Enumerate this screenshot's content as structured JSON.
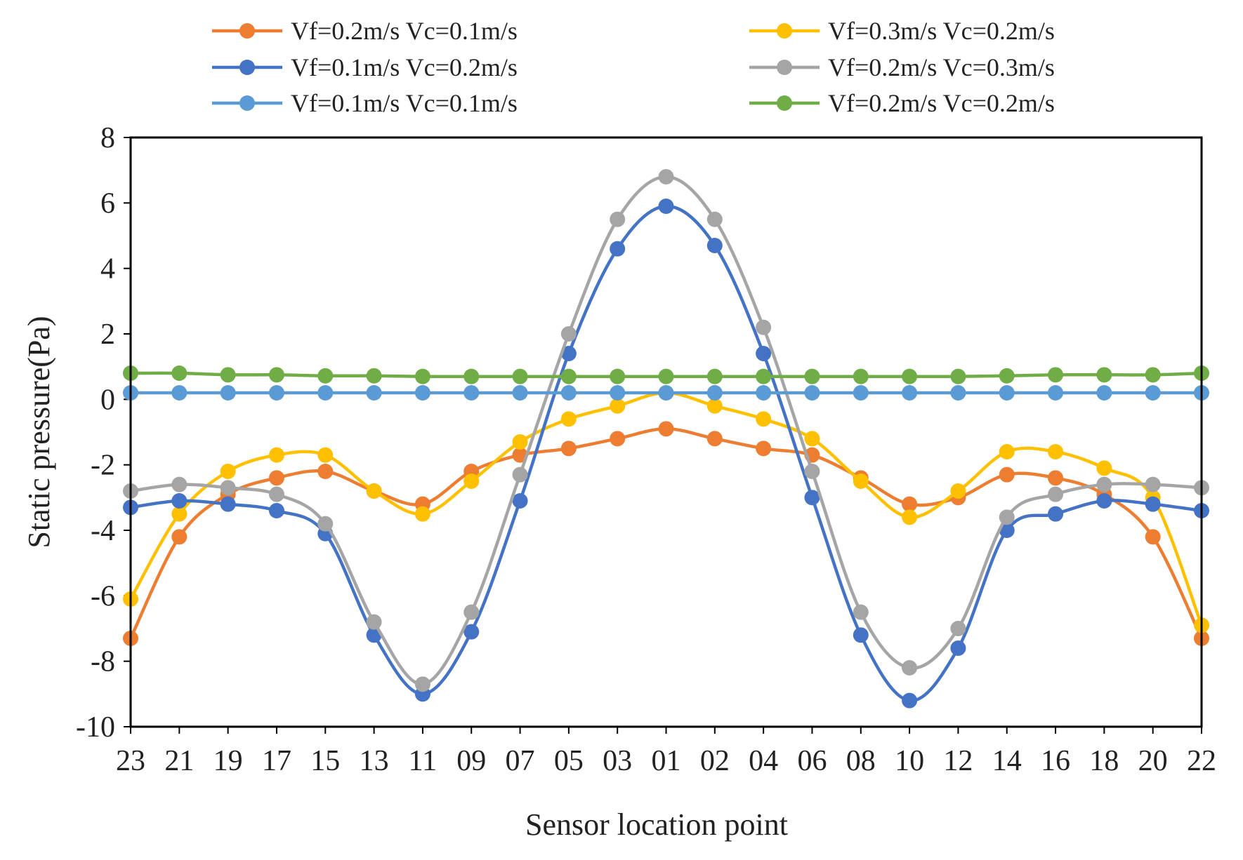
{
  "chart_data": {
    "type": "line",
    "title": "",
    "xlabel": "Sensor location point",
    "ylabel": "Static pressure(Pa)",
    "ylim": [
      -10,
      8
    ],
    "y_ticks": [
      "8",
      "6",
      "4",
      "2",
      "0",
      "-2",
      "-4",
      "-6",
      "-8",
      "-10"
    ],
    "grid": false,
    "legend_position": "top",
    "categories": [
      "23",
      "21",
      "19",
      "17",
      "15",
      "13",
      "11",
      "09",
      "07",
      "05",
      "03",
      "01",
      "02",
      "04",
      "06",
      "08",
      "10",
      "12",
      "14",
      "16",
      "18",
      "20",
      "22"
    ],
    "series": [
      {
        "name": "Vf=0.2m/s Vc=0.1m/s",
        "color": "#ED7D31",
        "values": [
          -7.3,
          -4.2,
          -2.9,
          -2.4,
          -2.2,
          -2.8,
          -3.2,
          -2.2,
          -1.7,
          -1.5,
          -1.2,
          -0.9,
          -1.2,
          -1.5,
          -1.7,
          -2.4,
          -3.2,
          -3.0,
          -2.3,
          -2.4,
          -2.9,
          -4.2,
          -7.3
        ]
      },
      {
        "name": "Vf=0.3m/s Vc=0.2m/s",
        "color": "#FFC000",
        "values": [
          -6.1,
          -3.5,
          -2.2,
          -1.7,
          -1.7,
          -2.8,
          -3.5,
          -2.5,
          -1.3,
          -0.6,
          -0.2,
          0.2,
          -0.2,
          -0.6,
          -1.2,
          -2.5,
          -3.6,
          -2.8,
          -1.6,
          -1.6,
          -2.1,
          -3.0,
          -6.9
        ]
      },
      {
        "name": "Vf=0.1m/s Vc=0.2m/s",
        "color": "#4472C4",
        "values": [
          -3.3,
          -3.1,
          -3.2,
          -3.4,
          -4.1,
          -7.2,
          -9.0,
          -7.1,
          -3.1,
          1.4,
          4.6,
          5.9,
          4.7,
          1.4,
          -3.0,
          -7.2,
          -9.2,
          -7.6,
          -4.0,
          -3.5,
          -3.1,
          -3.2,
          -3.4
        ]
      },
      {
        "name": "Vf=0.2m/s Vc=0.3m/s",
        "color": "#A5A5A5",
        "values": [
          -2.8,
          -2.6,
          -2.7,
          -2.9,
          -3.8,
          -6.8,
          -8.7,
          -6.5,
          -2.3,
          2.0,
          5.5,
          6.8,
          5.5,
          2.2,
          -2.2,
          -6.5,
          -8.2,
          -7.0,
          -3.6,
          -2.9,
          -2.6,
          -2.6,
          -2.7
        ]
      },
      {
        "name": "Vf=0.1m/s Vc=0.1m/s",
        "color": "#5B9BD5",
        "values": [
          0.2,
          0.2,
          0.2,
          0.2,
          0.2,
          0.2,
          0.2,
          0.2,
          0.2,
          0.2,
          0.2,
          0.2,
          0.2,
          0.2,
          0.2,
          0.2,
          0.2,
          0.2,
          0.2,
          0.2,
          0.2,
          0.2,
          0.2
        ]
      },
      {
        "name": "Vf=0.2m/s Vc=0.2m/s",
        "color": "#70AD47",
        "values": [
          0.8,
          0.8,
          0.75,
          0.75,
          0.72,
          0.72,
          0.7,
          0.7,
          0.7,
          0.7,
          0.7,
          0.7,
          0.7,
          0.7,
          0.7,
          0.7,
          0.7,
          0.7,
          0.72,
          0.75,
          0.75,
          0.75,
          0.8
        ]
      }
    ]
  }
}
